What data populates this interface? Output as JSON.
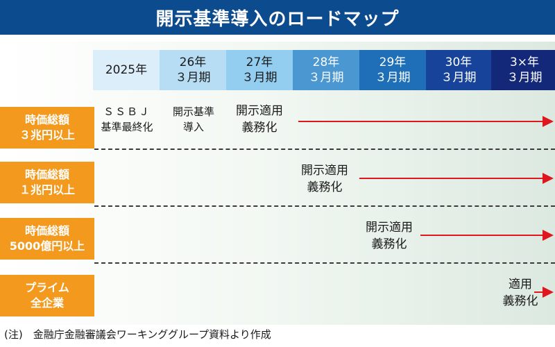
{
  "title": "開示基準導入のロードマップ",
  "timeline": [
    {
      "line1": "2025年",
      "line2": "",
      "bg": "#ddeefb",
      "fg": "#1a1a1a"
    },
    {
      "line1": "26年",
      "line2": "３月期",
      "bg": "#b7ddf5",
      "fg": "#1a1a1a"
    },
    {
      "line1": "27年",
      "line2": "３月期",
      "bg": "#93cdef",
      "fg": "#1a1a1a"
    },
    {
      "line1": "28年",
      "line2": "３月期",
      "bg": "#4a97d2",
      "fg": "#ffffff"
    },
    {
      "line1": "29年",
      "line2": "３月期",
      "bg": "#1e6fb8",
      "fg": "#ffffff"
    },
    {
      "line1": "30年",
      "line2": "３月期",
      "bg": "#17449a",
      "fg": "#ffffff"
    },
    {
      "line1": "3×年",
      "line2": "３月期",
      "bg": "#14287a",
      "fg": "#ffffff"
    }
  ],
  "rows": [
    {
      "label_line1": "時価総額",
      "label_line2": "３兆円以上"
    },
    {
      "label_line1": "時価総額",
      "label_line2": "１兆円以上"
    },
    {
      "label_line1": "時価総額",
      "label_line2": "5000億円以上"
    },
    {
      "label_line1": "プライム",
      "label_line2": "全企業"
    }
  ],
  "row1": {
    "ssbj_line1": "ＳＳＢＪ",
    "ssbj_line2": "基準最終化",
    "intro_line1": "開示基準",
    "intro_line2": "導入",
    "mandate_line1": "開示適用",
    "mandate_line2": "義務化"
  },
  "row2": {
    "mandate_line1": "開示適用",
    "mandate_line2": "義務化"
  },
  "row3": {
    "mandate_line1": "開示適用",
    "mandate_line2": "義務化"
  },
  "row4": {
    "mandate_line1": "適用",
    "mandate_line2": "義務化"
  },
  "footnote": "(注)　金融庁金融審議会ワーキンググループ資料より作成",
  "colors": {
    "title_bg": "#0d4b8f",
    "label_bg": "#f39a1e",
    "arrow": "#e0161e"
  }
}
